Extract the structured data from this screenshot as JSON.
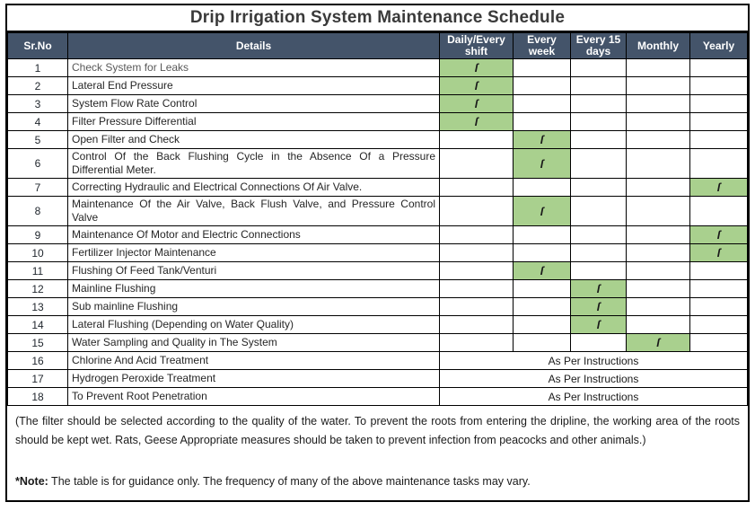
{
  "title": "Drip Irrigation System Maintenance Schedule",
  "colors": {
    "header_bg": "#44546A",
    "header_text": "#FFFFFF",
    "check_cell_bg": "#A9D08E",
    "border": "#000000",
    "title_text": "#3A3A3A",
    "body_text": "#262626",
    "muted_row_text": "#595959"
  },
  "table": {
    "columns": [
      {
        "key": "sr",
        "label": "Sr.No"
      },
      {
        "key": "details",
        "label": "Details"
      },
      {
        "key": "daily",
        "label": "Daily/Every shift"
      },
      {
        "key": "week",
        "label": "Every week"
      },
      {
        "key": "days15",
        "label": "Every 15 days"
      },
      {
        "key": "monthly",
        "label": "Monthly"
      },
      {
        "key": "yearly",
        "label": "Yearly"
      }
    ],
    "check_glyph": "ſ",
    "instructions_label": "As Per Instructions",
    "rows": [
      {
        "sr": "1",
        "details": "Check System for Leaks",
        "check": "daily",
        "muted": true
      },
      {
        "sr": "2",
        "details": "Lateral End Pressure",
        "check": "daily"
      },
      {
        "sr": "3",
        "details": "System Flow Rate Control",
        "check": "daily"
      },
      {
        "sr": "4",
        "details": "Filter Pressure Differential",
        "check": "daily"
      },
      {
        "sr": "5",
        "details": "Open Filter and Check",
        "check": "week"
      },
      {
        "sr": "6",
        "details": "Control Of the Back Flushing Cycle in the Absence Of a Pressure Differential Meter.",
        "check": "week"
      },
      {
        "sr": "7",
        "details": "Correcting Hydraulic and Electrical Connections Of Air Valve.",
        "check": "yearly"
      },
      {
        "sr": "8",
        "details": "Maintenance Of the Air Valve, Back Flush Valve, and Pressure Control Valve",
        "check": "week"
      },
      {
        "sr": "9",
        "details": "Maintenance Of Motor and Electric Connections",
        "check": "yearly"
      },
      {
        "sr": "10",
        "details": "Fertilizer Injector Maintenance",
        "check": "yearly"
      },
      {
        "sr": "11",
        "details": "Flushing Of Feed Tank/Venturi",
        "check": "week"
      },
      {
        "sr": "12",
        "details": "Mainline Flushing",
        "check": "days15"
      },
      {
        "sr": "13",
        "details": "Sub mainline Flushing",
        "check": "days15"
      },
      {
        "sr": "14",
        "details": "Lateral Flushing (Depending on Water Quality)",
        "check": "days15"
      },
      {
        "sr": "15",
        "details": "Water Sampling and Quality in The System",
        "check": "monthly"
      },
      {
        "sr": "16",
        "details": "Chlorine And Acid Treatment",
        "check": "instructions"
      },
      {
        "sr": "17",
        "details": "Hydrogen Peroxide Treatment",
        "check": "instructions"
      },
      {
        "sr": "18",
        "details": "To Prevent Root Penetration",
        "check": "instructions"
      }
    ]
  },
  "footer": {
    "paragraph": "(The filter should be selected according to the quality of the water.  To prevent the roots from entering the dripline, the working area of the roots should be kept wet. Rats, Geese Appropriate measures should be taken to prevent infection from peacocks and other animals.)",
    "note_label": "*Note:",
    "note_text": " The table is for guidance only. The frequency of many of the above maintenance tasks may vary."
  }
}
